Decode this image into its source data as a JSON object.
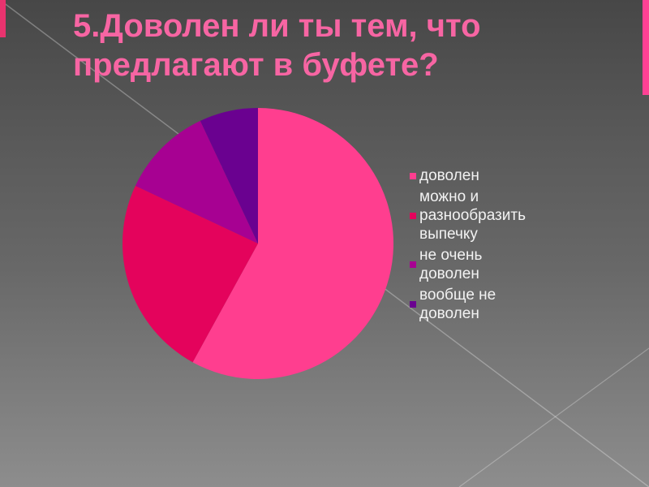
{
  "chart_data": {
    "type": "pie",
    "title": "5.Доволен ли ты тем, что предлагают в буфете?",
    "categories": [
      "доволен",
      "можно и разнообразить выпечку",
      "не очень доволен",
      "вообще не доволен"
    ],
    "values": [
      58,
      24,
      11,
      7
    ],
    "unit": "% (estimated from slice angles; no data labels shown)",
    "colors": [
      "#FF3E8F",
      "#E4035C",
      "#A70192",
      "#6A0190"
    ],
    "start_angle_deg": 0,
    "direction": "clockwise",
    "legend_position": "right",
    "data_labels": false,
    "title_color": "#F765A3",
    "legend_text_color": "#F2F2F2"
  }
}
